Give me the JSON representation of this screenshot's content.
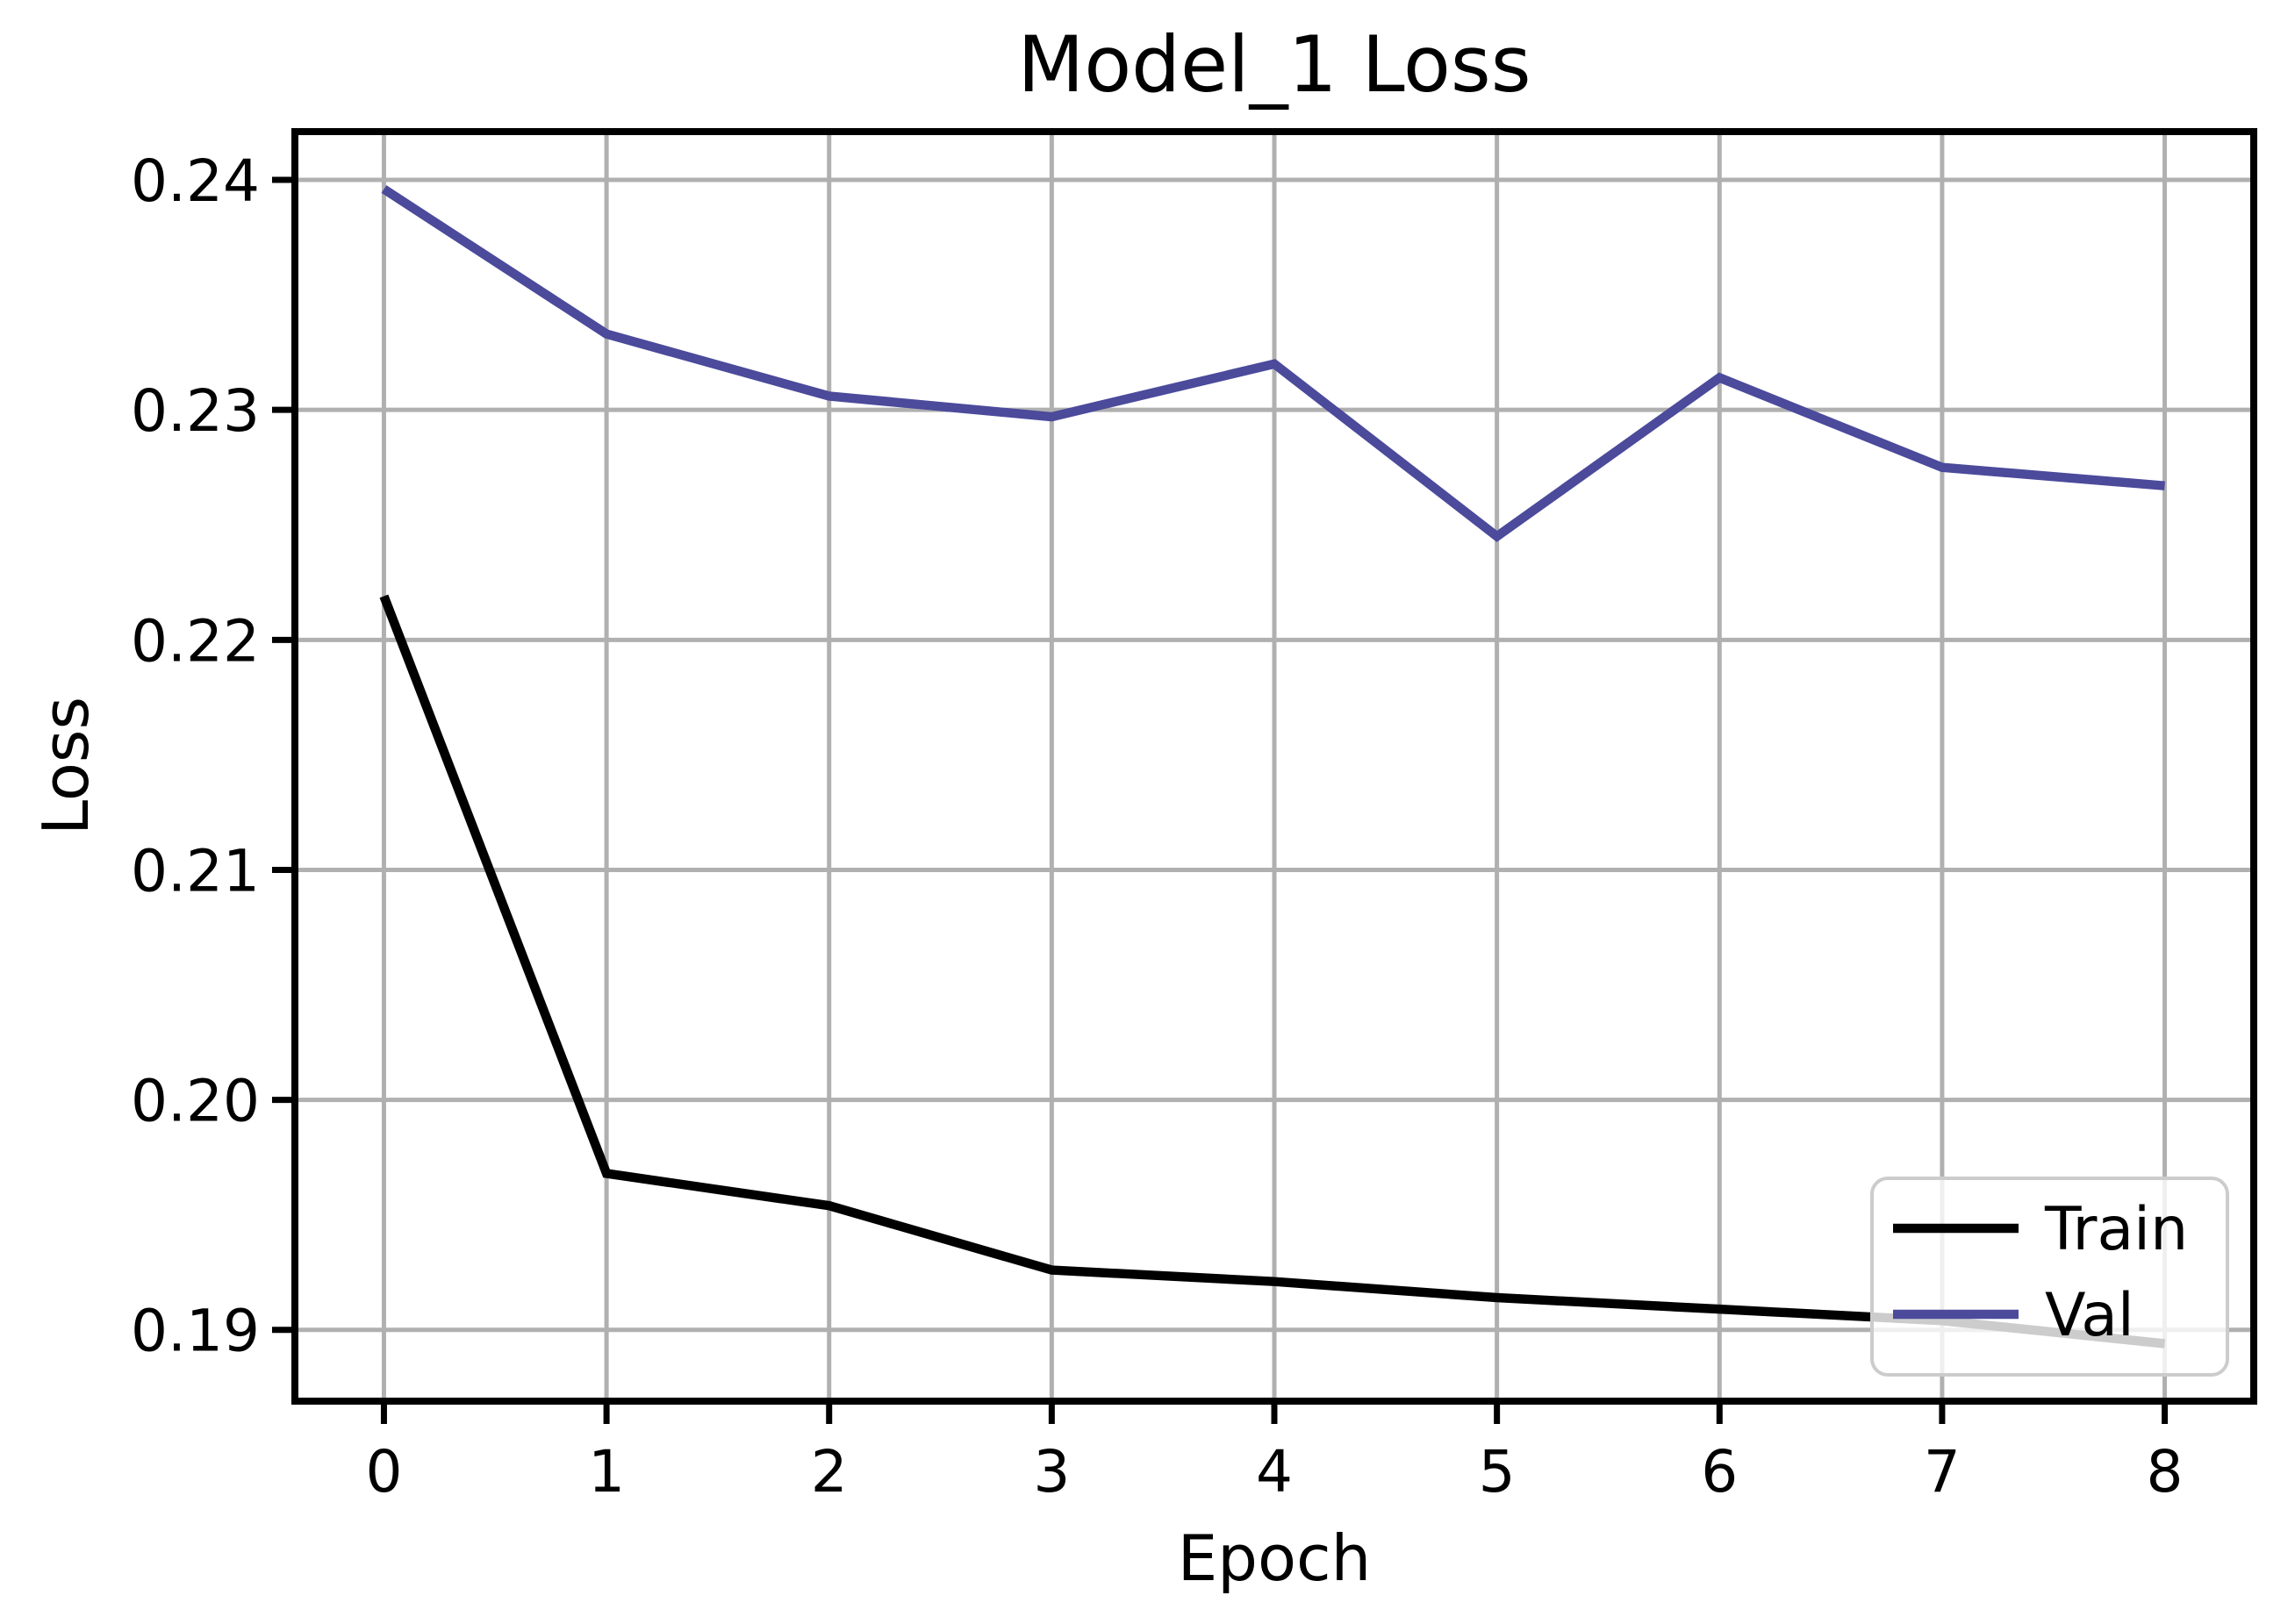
{
  "figure": {
    "title": "Model_1 Loss",
    "xlabel": "Epoch",
    "ylabel": "Loss"
  },
  "legend": {
    "position": "lower right",
    "entries": [
      {
        "label": "Train",
        "color": "#000000"
      },
      {
        "label": "Val",
        "color": "#4b4a9b"
      }
    ]
  },
  "chart_data": {
    "type": "line",
    "title": "Model_1 Loss",
    "xlabel": "Epoch",
    "ylabel": "Loss",
    "x": [
      0,
      1,
      2,
      3,
      4,
      5,
      6,
      7,
      8
    ],
    "series": [
      {
        "name": "Train",
        "color": "#000000",
        "values": [
          0.2219,
          0.1968,
          0.1954,
          0.1926,
          0.1921,
          0.1914,
          0.1909,
          0.1904,
          0.1894
        ]
      },
      {
        "name": "Val",
        "color": "#4b4a9b",
        "values": [
          0.2396,
          0.2333,
          0.2306,
          0.2297,
          0.232,
          0.2245,
          0.2314,
          0.2275,
          0.2267
        ]
      }
    ],
    "xlim": [
      -0.4,
      8.4
    ],
    "ylim": [
      0.1869,
      0.2421
    ],
    "xticks": [
      0,
      1,
      2,
      3,
      4,
      5,
      6,
      7,
      8
    ],
    "xtick_labels": [
      "0",
      "1",
      "2",
      "3",
      "4",
      "5",
      "6",
      "7",
      "8"
    ],
    "yticks": [
      0.19,
      0.2,
      0.21,
      0.22,
      0.23,
      0.24
    ],
    "ytick_labels": [
      "0.19",
      "0.20",
      "0.21",
      "0.22",
      "0.23",
      "0.24"
    ],
    "grid": true,
    "legend_position": "lower right",
    "colors": {
      "background": "#ffffff",
      "grid": "#b0b0b0",
      "spine": "#000000",
      "tick": "#000000",
      "legend_border": "#cccccc",
      "legend_fill_rgba": "rgba(255,255,255,0.8)"
    }
  }
}
